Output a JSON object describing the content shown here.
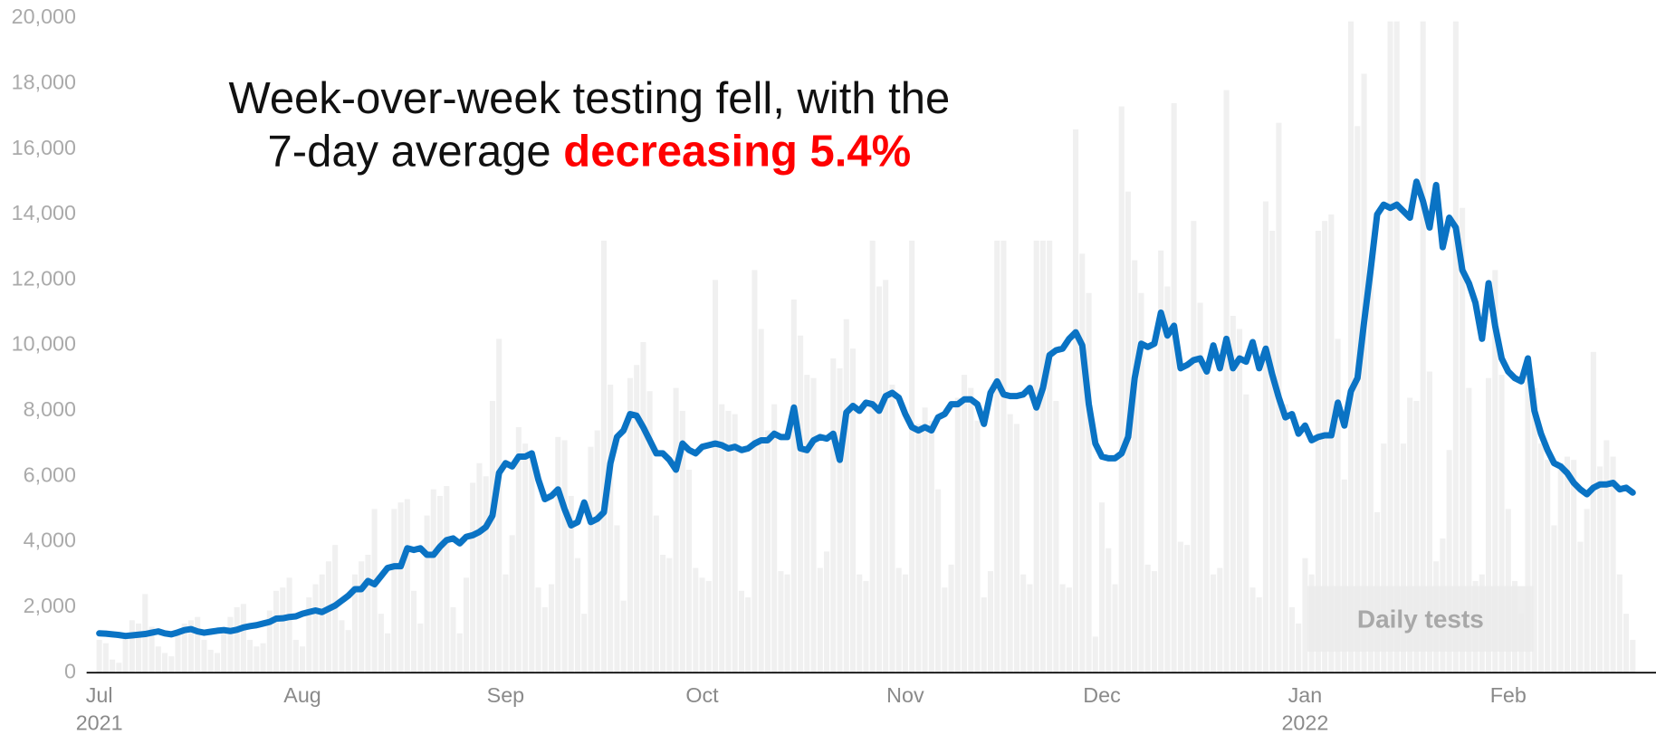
{
  "chart_data": {
    "type": "combo",
    "title_line1": "Week-over-week testing fell, with the",
    "title_line2": "7-day average ",
    "title_highlight": "decreasing 5.4%",
    "highlight_color": "#ff0000",
    "categories": [
      "Jul",
      null,
      null,
      null,
      null,
      null,
      null,
      null,
      null,
      null,
      null,
      null,
      null,
      null,
      null,
      null,
      null,
      null,
      null,
      null,
      null,
      null,
      null,
      null,
      null,
      null,
      null,
      null,
      null,
      null,
      null,
      "Aug",
      null,
      null,
      null,
      null,
      null,
      null,
      null,
      null,
      null,
      null,
      null,
      null,
      null,
      null,
      null,
      null,
      null,
      null,
      null,
      null,
      null,
      null,
      null,
      null,
      null,
      null,
      null,
      null,
      null,
      null,
      "Sep",
      null,
      null,
      null,
      null,
      null,
      null,
      null,
      null,
      null,
      null,
      null,
      null,
      null,
      null,
      null,
      null,
      null,
      null,
      null,
      null,
      null,
      null,
      null,
      null,
      null,
      null,
      null,
      null,
      null,
      "Oct",
      null,
      null,
      null,
      null,
      null,
      null,
      null,
      null,
      null,
      null,
      null,
      null,
      null,
      null,
      null,
      null,
      null,
      null,
      null,
      null,
      null,
      null,
      null,
      null,
      null,
      null,
      null,
      null,
      null,
      null,
      "Nov",
      null,
      null,
      null,
      null,
      null,
      null,
      null,
      null,
      null,
      null,
      null,
      null,
      null,
      null,
      null,
      null,
      null,
      null,
      null,
      null,
      null,
      null,
      null,
      null,
      null,
      null,
      null,
      null,
      null,
      "Dec",
      null,
      null,
      null,
      null,
      null,
      null,
      null,
      null,
      null,
      null,
      null,
      null,
      null,
      null,
      null,
      null,
      null,
      null,
      null,
      null,
      null,
      null,
      null,
      null,
      null,
      null,
      null,
      null,
      null,
      null,
      "Jan",
      null,
      null,
      null,
      null,
      null,
      null,
      null,
      null,
      null,
      null,
      null,
      null,
      null,
      null,
      null,
      null,
      null,
      null,
      null,
      null,
      null,
      null,
      null,
      null,
      null,
      null,
      null,
      null,
      null,
      null,
      "Feb",
      null,
      null,
      null,
      null,
      null,
      null,
      null,
      null,
      null,
      null,
      null,
      null,
      null,
      null,
      null,
      null,
      null,
      null,
      null
    ],
    "year_labels": [
      "2021",
      null,
      null,
      null,
      null,
      null,
      null,
      null,
      null,
      null,
      null,
      null,
      null,
      null,
      null,
      null,
      null,
      null,
      null,
      null,
      null,
      null,
      null,
      null,
      null,
      null,
      null,
      null,
      null,
      null,
      null,
      null,
      null,
      null,
      null,
      null,
      null,
      null,
      null,
      null,
      null,
      null,
      null,
      null,
      null,
      null,
      null,
      null,
      null,
      null,
      null,
      null,
      null,
      null,
      null,
      null,
      null,
      null,
      null,
      null,
      null,
      null,
      null,
      null,
      null,
      null,
      null,
      null,
      null,
      null,
      null,
      null,
      null,
      null,
      null,
      null,
      null,
      null,
      null,
      null,
      null,
      null,
      null,
      null,
      null,
      null,
      null,
      null,
      null,
      null,
      null,
      null,
      null,
      null,
      null,
      null,
      null,
      null,
      null,
      null,
      null,
      null,
      null,
      null,
      null,
      null,
      null,
      null,
      null,
      null,
      null,
      null,
      null,
      null,
      null,
      null,
      null,
      null,
      null,
      null,
      null,
      null,
      null,
      null,
      null,
      null,
      null,
      null,
      null,
      null,
      null,
      null,
      null,
      null,
      null,
      null,
      null,
      null,
      null,
      null,
      null,
      null,
      null,
      null,
      null,
      null,
      null,
      null,
      null,
      null,
      null,
      null,
      null,
      null,
      null,
      null,
      null,
      null,
      null,
      null,
      null,
      null,
      null,
      null,
      null,
      null,
      null,
      null,
      null,
      null,
      null,
      null,
      null,
      null,
      null,
      null,
      null,
      null,
      null,
      null,
      null,
      null,
      null,
      null,
      "2022",
      null,
      null,
      null,
      null,
      null,
      null,
      null,
      null,
      null,
      null,
      null,
      null,
      null,
      null,
      null,
      null,
      null,
      null,
      null,
      null,
      null,
      null,
      null,
      null,
      null,
      null,
      null,
      null,
      null,
      null,
      null,
      null,
      null,
      null,
      null,
      null,
      null,
      null,
      null,
      null,
      null,
      null,
      null,
      null,
      null,
      null,
      null,
      null,
      null,
      null
    ],
    "series": [
      {
        "name": "Daily tests",
        "type": "bar",
        "color": "#f0f0f0",
        "values": [
          1000,
          900,
          400,
          300,
          1200,
          1600,
          1500,
          2400,
          1400,
          800,
          600,
          500,
          1300,
          1500,
          1600,
          1700,
          1000,
          700,
          600,
          1400,
          1700,
          2000,
          2100,
          1000,
          800,
          900,
          1900,
          2500,
          2600,
          2900,
          1000,
          800,
          2300,
          2700,
          3000,
          3400,
          3900,
          1600,
          1300,
          3000,
          3400,
          3600,
          5000,
          1800,
          1200,
          5000,
          5200,
          5300,
          2500,
          1500,
          4800,
          5600,
          5400,
          5700,
          2000,
          1200,
          2900,
          5800,
          6400,
          6000,
          8300,
          10200,
          3000,
          4200,
          7500,
          7000,
          6500,
          2600,
          2000,
          2700,
          7200,
          7100,
          5400,
          3500,
          1800,
          6900,
          7400,
          13200,
          8800,
          4500,
          2200,
          9000,
          9400,
          10100,
          8600,
          4800,
          3600,
          3500,
          8700,
          8000,
          6200,
          3200,
          2900,
          2800,
          12000,
          8200,
          8000,
          7900,
          2500,
          2300,
          12300,
          10500,
          7400,
          8200,
          3100,
          3000,
          11400,
          10300,
          9100,
          9000,
          3200,
          3700,
          9600,
          9300,
          10800,
          9900,
          3000,
          2800,
          13200,
          11800,
          12000,
          8800,
          3200,
          3000,
          13200,
          7600,
          8100,
          7700,
          5600,
          2600,
          3300,
          8400,
          9100,
          8700,
          7700,
          2300,
          3100,
          13200,
          13200,
          7900,
          7600,
          3000,
          2700,
          13200,
          13200,
          13200,
          8300,
          2700,
          2600,
          16600,
          12800,
          11600,
          1100,
          5200,
          3800,
          2700,
          17300,
          14700,
          12600,
          11600,
          3300,
          3100,
          12900,
          11800,
          17400,
          4000,
          3900,
          13800,
          11300,
          9200,
          3000,
          3200,
          17800,
          10900,
          10500,
          8500,
          2600,
          2300,
          14400,
          13500,
          16800,
          8200,
          2000,
          1500,
          3500,
          3000,
          13500,
          13800,
          14000,
          10200,
          5900,
          19900,
          16700,
          18300,
          12400,
          4900,
          7000,
          19900,
          19900,
          7000,
          8400,
          8300,
          19900,
          9200,
          3400,
          4100,
          6800,
          19900,
          14200,
          8700,
          2800,
          3000,
          9000,
          12300,
          9100,
          5000,
          2800,
          1800,
          9500,
          8700,
          7000,
          6500,
          4500,
          6400,
          6600,
          6500,
          4000,
          5000,
          9800,
          6300,
          7100,
          6600,
          3000,
          1800,
          1000
        ]
      },
      {
        "type": "line",
        "color": "#0a73c4",
        "values": [
          1200,
          1190,
          1170,
          1150,
          1120,
          1140,
          1160,
          1180,
          1220,
          1260,
          1200,
          1170,
          1230,
          1300,
          1330,
          1260,
          1220,
          1250,
          1280,
          1300,
          1270,
          1310,
          1380,
          1420,
          1450,
          1500,
          1550,
          1650,
          1660,
          1700,
          1720,
          1800,
          1850,
          1900,
          1850,
          1950,
          2050,
          2200,
          2350,
          2550,
          2550,
          2800,
          2700,
          2950,
          3200,
          3250,
          3250,
          3800,
          3750,
          3800,
          3600,
          3600,
          3850,
          4050,
          4100,
          3950,
          4150,
          4200,
          4300,
          4450,
          4800,
          6100,
          6400,
          6300,
          6600,
          6600,
          6700,
          5900,
          5300,
          5400,
          5600,
          5000,
          4500,
          4600,
          5200,
          4600,
          4700,
          4900,
          6400,
          7200,
          7400,
          7900,
          7850,
          7500,
          7100,
          6700,
          6700,
          6500,
          6200,
          7000,
          6800,
          6700,
          6900,
          6950,
          7000,
          6950,
          6850,
          6900,
          6800,
          6850,
          7000,
          7100,
          7100,
          7300,
          7200,
          7200,
          8100,
          6850,
          6800,
          7100,
          7200,
          7150,
          7300,
          6500,
          7950,
          8150,
          8000,
          8250,
          8200,
          8000,
          8450,
          8550,
          8400,
          7900,
          7500,
          7400,
          7500,
          7400,
          7800,
          7900,
          8200,
          8200,
          8350,
          8350,
          8200,
          7600,
          8550,
          8900,
          8500,
          8450,
          8450,
          8500,
          8700,
          8100,
          8700,
          9700,
          9850,
          9900,
          10200,
          10400,
          10000,
          8200,
          7000,
          6600,
          6550,
          6550,
          6700,
          7200,
          9000,
          10050,
          9950,
          10050,
          11000,
          10300,
          10600,
          9300,
          9400,
          9550,
          9600,
          9200,
          10000,
          9300,
          10200,
          9300,
          9600,
          9500,
          10100,
          9300,
          9900,
          9100,
          8400,
          7800,
          7900,
          7300,
          7550,
          7100,
          7200,
          7250,
          7250,
          8250,
          7550,
          8600,
          9000,
          10700,
          12300,
          14000,
          14300,
          14200,
          14300,
          14100,
          13900,
          15000,
          14400,
          13600,
          14900,
          13000,
          13900,
          13600,
          12300,
          11900,
          11300,
          10200,
          11900,
          10600,
          9600,
          9200,
          9000,
          8900,
          9600,
          8000,
          7300,
          6800,
          6400,
          6300,
          6100,
          5800,
          5600,
          5450,
          5650,
          5750,
          5750,
          5800,
          5600,
          5650,
          5500
        ]
      }
    ],
    "ylim": [
      0,
      20000
    ],
    "yticks": [
      0,
      {
        "value": 2000,
        "label": "2,000"
      },
      {
        "value": 4000,
        "label": "4,000"
      },
      {
        "value": 6000,
        "label": "6,000"
      },
      {
        "value": 8000,
        "label": "8,000"
      },
      {
        "value": 10000,
        "label": "10,000"
      },
      {
        "value": 12000,
        "label": "12,000"
      },
      {
        "value": 14000,
        "label": "14,000"
      },
      {
        "value": 16000,
        "label": "16,000"
      },
      {
        "value": 18000,
        "label": "18,000"
      },
      {
        "value": 20000,
        "label": "20,000"
      }
    ],
    "grid": false,
    "legend": "lower right"
  }
}
